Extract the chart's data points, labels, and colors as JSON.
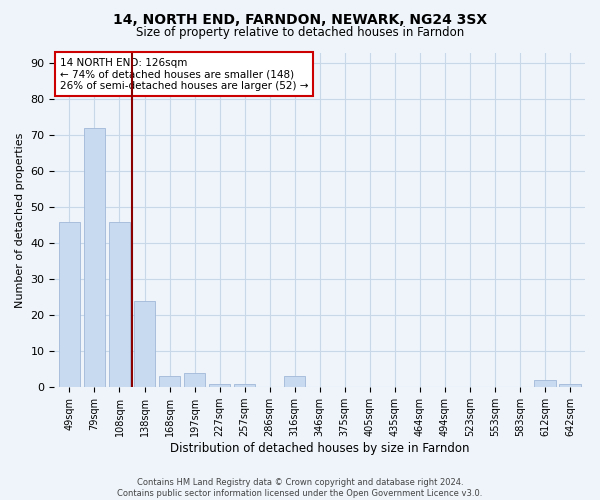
{
  "title1": "14, NORTH END, FARNDON, NEWARK, NG24 3SX",
  "title2": "Size of property relative to detached houses in Farndon",
  "xlabel": "Distribution of detached houses by size in Farndon",
  "ylabel": "Number of detached properties",
  "categories": [
    "49sqm",
    "79sqm",
    "108sqm",
    "138sqm",
    "168sqm",
    "197sqm",
    "227sqm",
    "257sqm",
    "286sqm",
    "316sqm",
    "346sqm",
    "375sqm",
    "405sqm",
    "435sqm",
    "464sqm",
    "494sqm",
    "523sqm",
    "553sqm",
    "583sqm",
    "612sqm",
    "642sqm"
  ],
  "values": [
    46,
    72,
    46,
    24,
    3,
    4,
    1,
    1,
    0,
    3,
    0,
    0,
    0,
    0,
    0,
    0,
    0,
    0,
    0,
    2,
    1
  ],
  "bar_color": "#c8daf0",
  "bar_edge_color": "#a0b8d8",
  "vline_x": 2.5,
  "vline_color": "#8b0000",
  "annotation_line1": "14 NORTH END: 126sqm",
  "annotation_line2": "← 74% of detached houses are smaller (148)",
  "annotation_line3": "26% of semi-detached houses are larger (52) →",
  "annotation_box_color": "white",
  "annotation_box_edge_color": "#cc0000",
  "ylim": [
    0,
    93
  ],
  "yticks": [
    0,
    10,
    20,
    30,
    40,
    50,
    60,
    70,
    80,
    90
  ],
  "grid_color": "#c8d8e8",
  "background_color": "#eef4fa",
  "footer": "Contains HM Land Registry data © Crown copyright and database right 2024.\nContains public sector information licensed under the Open Government Licence v3.0."
}
